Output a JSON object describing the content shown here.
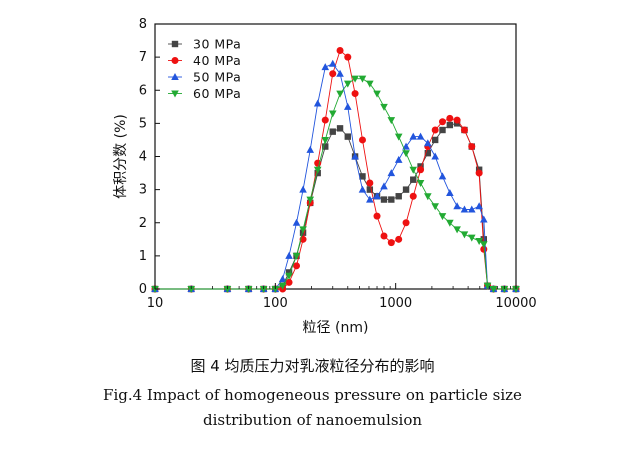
{
  "figure": {
    "caption_zh": "图 4   均质压力对乳液粒径分布的影响",
    "caption_en_line1": "Fig.4    Impact of homogeneous pressure on particle size",
    "caption_en_line2": "distribution of nanoemulsion"
  },
  "chart_data": {
    "type": "line",
    "xscale": "log",
    "xlim": [
      10,
      10000
    ],
    "ylim": [
      0,
      8
    ],
    "xticks": [
      10,
      100,
      1000,
      10000
    ],
    "xtick_labels": [
      "10",
      "100",
      "1000",
      "10000"
    ],
    "yticks": [
      0,
      1,
      2,
      3,
      4,
      5,
      6,
      7,
      8
    ],
    "ytick_labels": [
      "0",
      "1",
      "2",
      "3",
      "4",
      "5",
      "6",
      "7",
      "8"
    ],
    "xlabel": "粒径 (nm)",
    "ylabel": "体积分数 (%)",
    "grid": false,
    "legend_position": "top-left",
    "series": [
      {
        "name": "30 MPa",
        "color": "#444444",
        "marker": "square",
        "x": [
          10,
          20,
          40,
          60,
          80,
          100,
          115,
          130,
          150,
          170,
          195,
          225,
          260,
          300,
          345,
          400,
          460,
          530,
          610,
          700,
          800,
          920,
          1060,
          1220,
          1400,
          1610,
          1850,
          2130,
          2450,
          2820,
          3240,
          3730,
          4290,
          4940,
          5400,
          5800,
          6500,
          8000,
          10000
        ],
        "y": [
          0,
          0,
          0,
          0,
          0,
          0,
          0.1,
          0.5,
          1.0,
          1.7,
          2.6,
          3.5,
          4.3,
          4.75,
          4.85,
          4.6,
          4.0,
          3.4,
          3.0,
          2.8,
          2.7,
          2.7,
          2.8,
          3.0,
          3.3,
          3.7,
          4.1,
          4.5,
          4.8,
          4.95,
          5.0,
          4.8,
          4.3,
          3.6,
          1.5,
          0.1,
          0,
          0,
          0
        ]
      },
      {
        "name": "40 MPa",
        "color": "#ee1111",
        "marker": "circle",
        "x": [
          10,
          20,
          40,
          60,
          80,
          100,
          115,
          130,
          150,
          170,
          195,
          225,
          260,
          300,
          345,
          400,
          460,
          530,
          610,
          700,
          800,
          920,
          1060,
          1220,
          1400,
          1610,
          1850,
          2130,
          2450,
          2820,
          3240,
          3730,
          4290,
          4940,
          5400,
          5800,
          6500,
          8000,
          10000
        ],
        "y": [
          0,
          0,
          0,
          0,
          0,
          0,
          0,
          0.2,
          0.7,
          1.5,
          2.6,
          3.8,
          5.1,
          6.5,
          7.2,
          7.0,
          5.9,
          4.5,
          3.2,
          2.2,
          1.6,
          1.4,
          1.5,
          2.0,
          2.8,
          3.6,
          4.3,
          4.8,
          5.05,
          5.15,
          5.1,
          4.8,
          4.3,
          3.5,
          1.2,
          0.1,
          0,
          0,
          0
        ]
      },
      {
        "name": "50 MPa",
        "color": "#2255dd",
        "marker": "triangle-up",
        "x": [
          10,
          20,
          40,
          60,
          80,
          100,
          115,
          130,
          150,
          170,
          195,
          225,
          260,
          300,
          345,
          400,
          460,
          530,
          610,
          700,
          800,
          920,
          1060,
          1220,
          1400,
          1610,
          1850,
          2130,
          2450,
          2820,
          3240,
          3730,
          4290,
          4940,
          5400,
          5800,
          6500,
          8000,
          10000
        ],
        "y": [
          0,
          0,
          0,
          0,
          0,
          0,
          0.3,
          1.0,
          2.0,
          3.0,
          4.2,
          5.6,
          6.7,
          6.8,
          6.5,
          5.5,
          4.0,
          3.0,
          2.7,
          2.8,
          3.1,
          3.5,
          3.9,
          4.3,
          4.6,
          4.6,
          4.4,
          4.0,
          3.4,
          2.9,
          2.5,
          2.4,
          2.4,
          2.5,
          2.1,
          0.1,
          0,
          0,
          0
        ]
      },
      {
        "name": "60 MPa",
        "color": "#22aa33",
        "marker": "triangle-down",
        "x": [
          10,
          20,
          40,
          60,
          80,
          100,
          115,
          130,
          150,
          170,
          195,
          225,
          260,
          300,
          345,
          400,
          460,
          530,
          610,
          700,
          800,
          920,
          1060,
          1220,
          1400,
          1610,
          1850,
          2130,
          2450,
          2820,
          3240,
          3730,
          4290,
          4940,
          5400,
          5800,
          6500,
          8000,
          10000
        ],
        "y": [
          0,
          0,
          0,
          0,
          0,
          0,
          0.1,
          0.4,
          1.0,
          1.8,
          2.7,
          3.6,
          4.5,
          5.3,
          5.9,
          6.2,
          6.35,
          6.35,
          6.2,
          5.9,
          5.5,
          5.1,
          4.6,
          4.1,
          3.6,
          3.2,
          2.8,
          2.5,
          2.2,
          2.0,
          1.8,
          1.65,
          1.55,
          1.45,
          1.35,
          0.1,
          0,
          0,
          0
        ]
      }
    ]
  }
}
